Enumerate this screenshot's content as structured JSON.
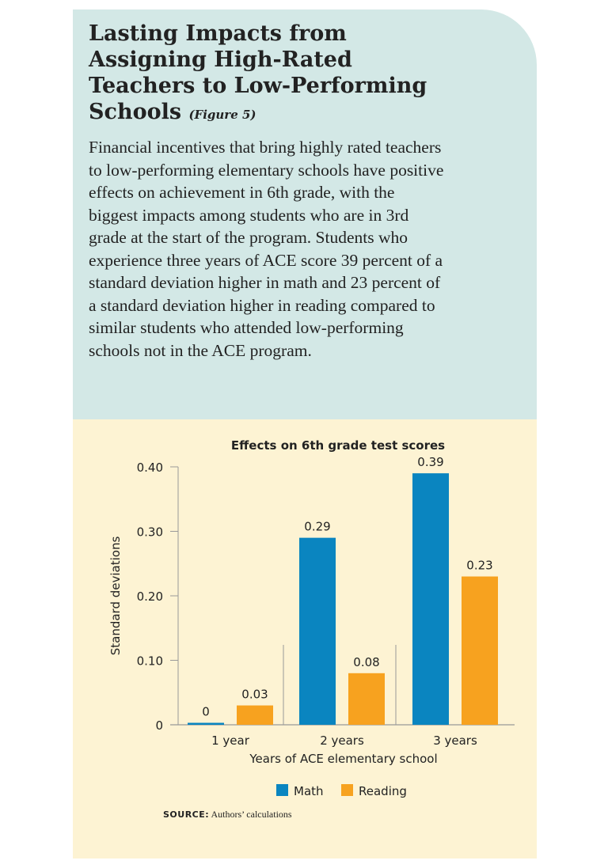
{
  "title": "Lasting Impacts from Assigning High-Rated Teachers to Low-Performing Schools",
  "figure_label": "(Figure 5)",
  "body": "Financial incentives that bring highly rated teachers to low-performing elementary schools have positive effects on achievement in 6th grade, with the biggest impacts among students who are in 3rd grade at the start of the program. Students who experience three years of ACE score 39 percent of a standard deviation higher in math and 23 percent of a standard deviation higher in reading compared to similar students who attended low-performing schools not in the ACE program.",
  "source_label": "SOURCE:",
  "source_text": "Authors’ calculations",
  "colors": {
    "header_bg": "#d3e8e6",
    "chart_bg": "#fdf3d3",
    "math": "#0a85c0",
    "reading": "#f7a21f"
  },
  "chart_data": {
    "type": "bar",
    "title": "Effects on 6th grade test scores",
    "xlabel": "Years of ACE elementary school",
    "ylabel": "Standard deviations",
    "categories": [
      "1 year",
      "2 years",
      "3 years"
    ],
    "series": [
      {
        "name": "Math",
        "values": [
          0,
          0.29,
          0.39
        ],
        "labels": [
          "0",
          "0.29",
          "0.39"
        ],
        "color": "#0a85c0"
      },
      {
        "name": "Reading",
        "values": [
          0.03,
          0.08,
          0.23
        ],
        "labels": [
          "0.03",
          "0.08",
          "0.23"
        ],
        "color": "#f7a21f"
      }
    ],
    "yticks": [
      0,
      0.1,
      0.2,
      0.3,
      0.4
    ],
    "ytick_labels": [
      "0",
      "0.10",
      "0.20",
      "0.30",
      "0.40"
    ],
    "ylim": [
      0,
      0.4
    ],
    "grid": false,
    "legend": "bottom"
  }
}
